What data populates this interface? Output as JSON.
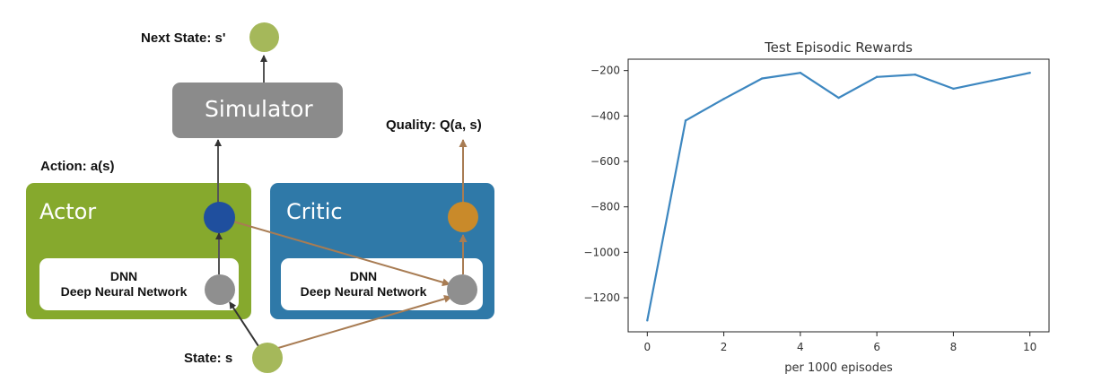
{
  "diagram": {
    "next_state_label": "Next State: s'",
    "simulator_label": "Simulator",
    "action_label": "Action: a(s)",
    "quality_label": "Quality: Q(a, s)",
    "actor": {
      "title": "Actor",
      "dnn_line1": "DNN",
      "dnn_line2": "Deep Neural Network"
    },
    "critic": {
      "title": "Critic",
      "dnn_line1": "DNN",
      "dnn_line2": "Deep Neural Network"
    },
    "state_label": "State: s",
    "colors": {
      "actor_box": "#86a92d",
      "critic_box": "#2f79a8",
      "simulator_box": "#8b8b8b",
      "state_node": "#a5b85a",
      "action_node": "#1f4f9e",
      "quality_node": "#c98a2a",
      "dnn_node": "#8f8f8f",
      "gray_arrow": "#555555",
      "brown_arrow": "#a87c53"
    }
  },
  "chart_data": {
    "type": "line",
    "title": "Test Episodic Rewards",
    "xlabel": "per 1000 episodes",
    "ylabel": "",
    "x": [
      0,
      1,
      2,
      3,
      4,
      5,
      6,
      7,
      8,
      9,
      10
    ],
    "series": [
      {
        "values": [
          -1300,
          -420,
          -325,
          -235,
          -210,
          -320,
          -228,
          -218,
          -280,
          -245,
          -210
        ]
      }
    ],
    "xlim": [
      -0.5,
      10.5
    ],
    "ylim": [
      -1350,
      -150
    ],
    "xticks": [
      0,
      2,
      4,
      6,
      8,
      10
    ],
    "yticks": [
      -1200,
      -1000,
      -800,
      -600,
      -400,
      -200
    ],
    "xtick_labels": [
      "0",
      "2",
      "4",
      "6",
      "8",
      "10"
    ],
    "ytick_labels": [
      "−1200",
      "−1000",
      "−800",
      "−600",
      "−400",
      "−200"
    ],
    "grid": false,
    "line_color": "#3d87c0"
  }
}
